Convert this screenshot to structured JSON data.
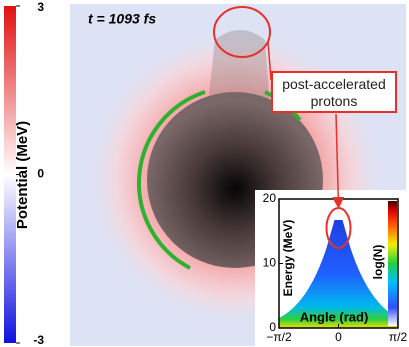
{
  "chart_data": [
    {
      "type": "heatmap",
      "annotation": "t = 1093 fs",
      "callout": "post-accelerated protons",
      "colorbar": {
        "label": "Potential (MeV)",
        "lim": [
          -3,
          3
        ],
        "ticks": [
          3,
          0,
          -3
        ]
      }
    },
    {
      "type": "scatter",
      "xlabel": "Angle (rad)",
      "ylabel": "Energy (MeV)",
      "colorbar_label": "log(N)",
      "xlim": [
        -1.5708,
        1.5708
      ],
      "ylim": [
        0,
        20
      ],
      "xticks": [
        {
          "value": -1.5708,
          "label": "−π/2"
        },
        0,
        {
          "value": 1.5708,
          "label": "π/2"
        }
      ],
      "yticks": [
        0,
        10,
        20
      ]
    }
  ]
}
